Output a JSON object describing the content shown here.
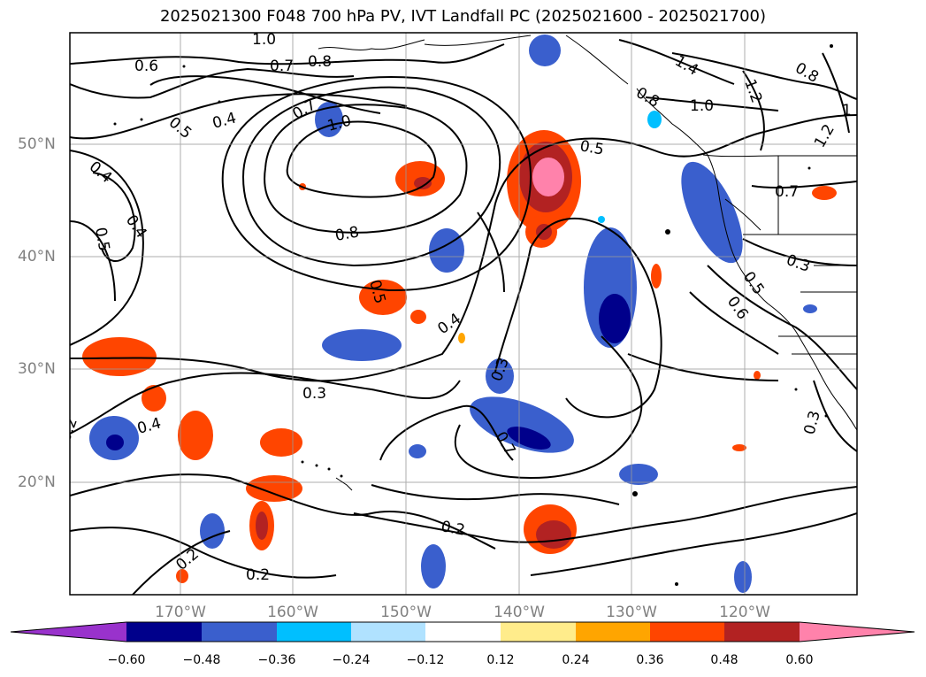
{
  "title": "2025021300 F048 700 hPa PV, IVT Landfall PC (2025021600 - 2025021700)",
  "map": {
    "lon_labels": [
      "170°W",
      "160°W",
      "150°W",
      "140°W",
      "130°W",
      "120°W"
    ],
    "lat_labels": [
      "50°N",
      "40°N",
      "30°N",
      "20°N"
    ],
    "contour_labels": [
      {
        "text": "1.0"
      },
      {
        "text": "0.7"
      },
      {
        "text": "0.6"
      },
      {
        "text": "0.8"
      },
      {
        "text": "1.4"
      },
      {
        "text": "0.8"
      },
      {
        "text": "1.2"
      },
      {
        "text": "0.8"
      },
      {
        "text": "0.5"
      },
      {
        "text": "0.4"
      },
      {
        "text": "0.7"
      },
      {
        "text": "1.0"
      },
      {
        "text": "1.0"
      },
      {
        "text": "1"
      },
      {
        "text": "0.5"
      },
      {
        "text": "1.2"
      },
      {
        "text": "0.4"
      },
      {
        "text": "0.7"
      },
      {
        "text": "0.4"
      },
      {
        "text": "0.5"
      },
      {
        "text": "0.8"
      },
      {
        "text": "0.3"
      },
      {
        "text": "0.5"
      },
      {
        "text": "0.5"
      },
      {
        "text": "0.6"
      },
      {
        "text": "0.4"
      },
      {
        "text": "0.3"
      },
      {
        "text": "0.3"
      },
      {
        "text": "0.4"
      },
      {
        "text": "0.7"
      },
      {
        "text": "0.2"
      },
      {
        "text": "0.2"
      },
      {
        "text": "0.2"
      },
      {
        "text": "0.2"
      },
      {
        "text": "0.3"
      }
    ]
  },
  "colorbar": {
    "colors": [
      "#9932CC",
      "#00008B",
      "#3A5FCD",
      "#00BFFF",
      "#B0E2FF",
      "#FFFFFF",
      "#FFEC8B",
      "#FFA500",
      "#FF4500",
      "#B22222",
      "#FF82AB",
      "#FF82AB"
    ],
    "ticks": [
      "−0.60",
      "−0.48",
      "−0.36",
      "−0.24",
      "−0.12",
      "0.12",
      "0.24",
      "0.36",
      "0.48",
      "0.60"
    ]
  }
}
